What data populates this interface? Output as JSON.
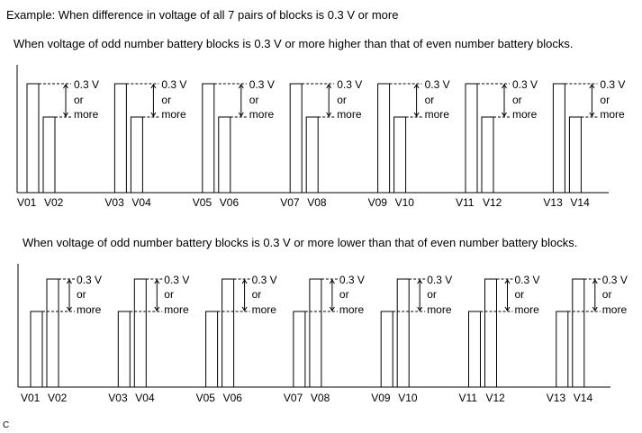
{
  "title": "Example: When difference in voltage of all 7 pairs of blocks is 0.3 V or more",
  "corner_mark": "C",
  "annotation": {
    "line1": "0.3 V",
    "line2": "or",
    "line3": "more"
  },
  "diagrams": [
    {
      "caption": "When voltage of odd number battery blocks is 0.3 V or more higher than that of even number battery blocks.",
      "odd_higher": true,
      "pairs": [
        {
          "odd": "V01",
          "even": "V02"
        },
        {
          "odd": "V03",
          "even": "V04"
        },
        {
          "odd": "V05",
          "even": "V06"
        },
        {
          "odd": "V07",
          "even": "V08"
        },
        {
          "odd": "V09",
          "even": "V10"
        },
        {
          "odd": "V11",
          "even": "V12"
        },
        {
          "odd": "V13",
          "even": "V14"
        }
      ]
    },
    {
      "caption": "When voltage of odd number battery blocks is 0.3 V or more lower than that of even number battery blocks.",
      "odd_higher": false,
      "pairs": [
        {
          "odd": "V01",
          "even": "V02"
        },
        {
          "odd": "V03",
          "even": "V04"
        },
        {
          "odd": "V05",
          "even": "V06"
        },
        {
          "odd": "V07",
          "even": "V08"
        },
        {
          "odd": "V09",
          "even": "V10"
        },
        {
          "odd": "V11",
          "even": "V12"
        },
        {
          "odd": "V13",
          "even": "V14"
        }
      ]
    }
  ]
}
